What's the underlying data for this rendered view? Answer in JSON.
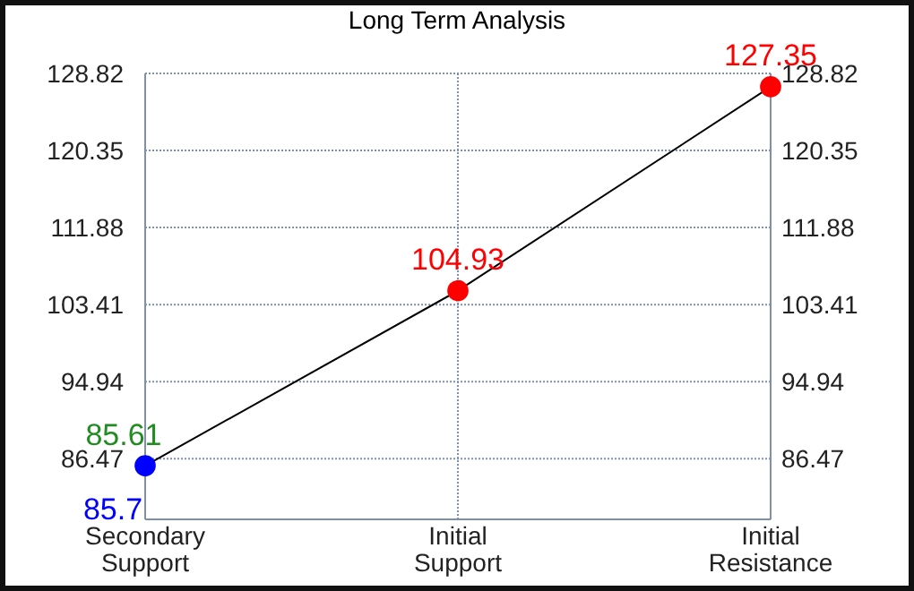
{
  "chart_data": {
    "type": "line",
    "title": "Long Term Analysis",
    "categories": [
      "Secondary Support",
      "Initial Support",
      "Initial Resistance"
    ],
    "series": [
      {
        "color": "#000000",
        "colors": [
          "#0000ff",
          "#ff0000",
          "#ff0000"
        ],
        "values": [
          85.7,
          104.93,
          127.35
        ]
      }
    ],
    "data_labels": true,
    "marker": "circle",
    "annotations": [
      {
        "text": "85.61",
        "x": "Secondary Support",
        "y": 85.61
      }
    ],
    "ylim": [
      79.8,
      128.82
    ],
    "yticks": [
      86.47,
      94.94,
      103.41,
      111.88,
      120.35,
      128.82
    ],
    "y2lim": [
      79.8,
      128.82
    ],
    "y2ticks": [
      86.47,
      94.94,
      103.41,
      111.88,
      120.35,
      128.82
    ],
    "grid": true
  }
}
